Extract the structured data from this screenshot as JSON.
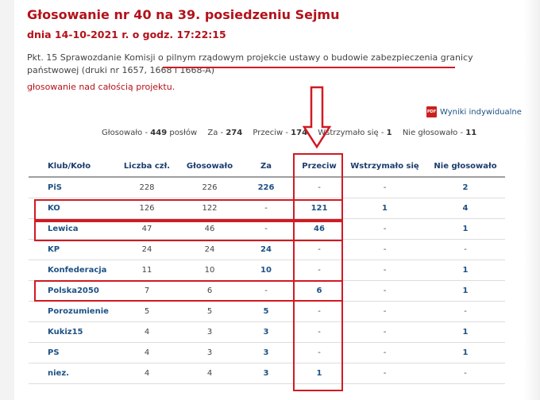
{
  "page": {
    "title": "Głosowanie nr 40 na 39. posiedzeniu Sejmu",
    "subtitle": "dnia 14-10-2021 r. o godz. 17:22:15",
    "description": "Pkt. 15 Sprawozdanie Komisji o pilnym rządowym projekcie ustawy o budowie zabezpieczenia granicy państwowej (druki nr 1657, 1668 i 1668-A)",
    "voting_mode": "głosowanie nad całością projektu.",
    "individual_results_link": "Wyniki indywidualne",
    "pdf_icon_label": "PDF"
  },
  "summary": {
    "voted_label": "Głosowało -",
    "voted": "449",
    "mps_label": "posłów",
    "for_label": "Za -",
    "for": "274",
    "against_label": "Przeciw -",
    "against": "174",
    "abstained_label": "Wstrzymało się -",
    "abstained": "1",
    "not_voted_label": "Nie głosowało -",
    "not_voted": "11"
  },
  "table": {
    "headers": [
      "Klub/Koło",
      "Liczba czł.",
      "Głosowało",
      "Za",
      "Przeciw",
      "Wstrzymało się",
      "Nie głosowało"
    ],
    "rows": [
      {
        "club": "PiS",
        "members": "228",
        "voted": "226",
        "for": "226",
        "against": "-",
        "abstained": "-",
        "not_voted": "2"
      },
      {
        "club": "KO",
        "members": "126",
        "voted": "122",
        "for": "-",
        "against": "121",
        "abstained": "1",
        "not_voted": "4"
      },
      {
        "club": "Lewica",
        "members": "47",
        "voted": "46",
        "for": "-",
        "against": "46",
        "abstained": "-",
        "not_voted": "1"
      },
      {
        "club": "KP",
        "members": "24",
        "voted": "24",
        "for": "24",
        "against": "-",
        "abstained": "-",
        "not_voted": "-"
      },
      {
        "club": "Konfederacja",
        "members": "11",
        "voted": "10",
        "for": "10",
        "against": "-",
        "abstained": "-",
        "not_voted": "1"
      },
      {
        "club": "Polska2050",
        "members": "7",
        "voted": "6",
        "for": "-",
        "against": "6",
        "abstained": "-",
        "not_voted": "1"
      },
      {
        "club": "Porozumienie",
        "members": "5",
        "voted": "5",
        "for": "5",
        "against": "-",
        "abstained": "-",
        "not_voted": "-"
      },
      {
        "club": "Kukiz15",
        "members": "4",
        "voted": "3",
        "for": "3",
        "against": "-",
        "abstained": "-",
        "not_voted": "1"
      },
      {
        "club": "PS",
        "members": "4",
        "voted": "3",
        "for": "3",
        "against": "-",
        "abstained": "-",
        "not_voted": "1"
      },
      {
        "club": "niez.",
        "members": "4",
        "voted": "4",
        "for": "3",
        "against": "1",
        "abstained": "-",
        "not_voted": "-"
      }
    ]
  },
  "colors": {
    "title": "#b3121b",
    "link": "#1d5185",
    "annotation": "#d11a22"
  },
  "icons": [
    "pdf-icon",
    "down-arrow-annotation"
  ]
}
